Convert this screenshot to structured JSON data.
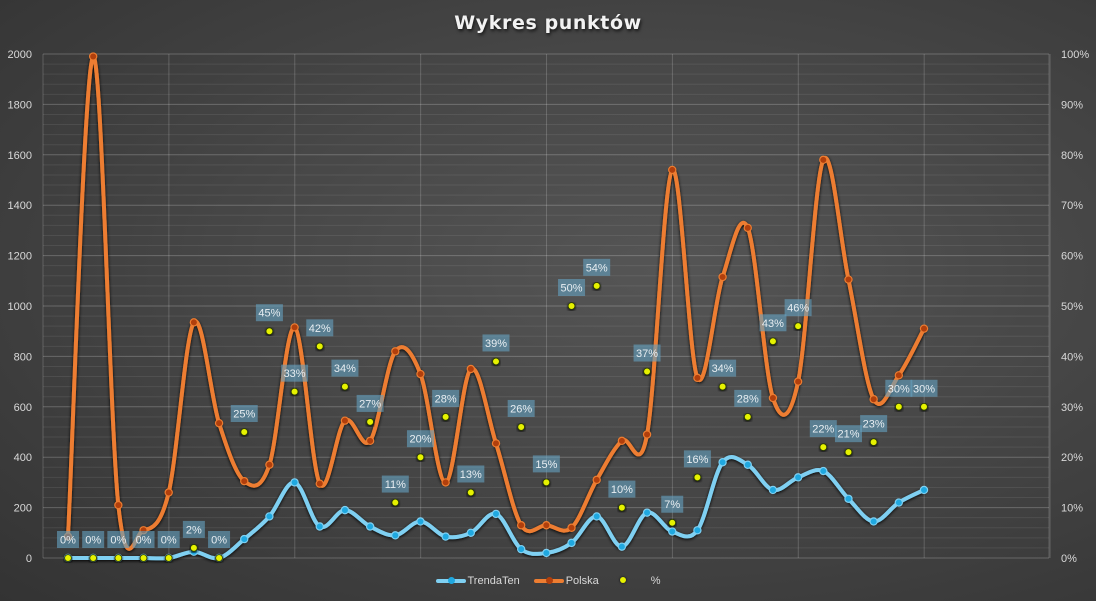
{
  "chart_data": {
    "type": "line",
    "title": "Wykres punktów",
    "xlabel": "",
    "ylabel": "",
    "ylim": [
      0,
      2000
    ],
    "y_ticks": [
      0,
      200,
      400,
      600,
      800,
      1000,
      1200,
      1400,
      1600,
      1800,
      2000
    ],
    "y2lim": [
      0,
      100
    ],
    "y2_ticks": [
      "0%",
      "10%",
      "20%",
      "30%",
      "40%",
      "50%",
      "60%",
      "70%",
      "80%",
      "90%",
      "100%"
    ],
    "grid": true,
    "legend_position": "bottom",
    "x": [
      1,
      2,
      3,
      4,
      5,
      6,
      7,
      8,
      9,
      10,
      11,
      12,
      13,
      14,
      15,
      16,
      17,
      18,
      19,
      20,
      21,
      22,
      23,
      24,
      25,
      26,
      27,
      28,
      29,
      30,
      31,
      32,
      33,
      34,
      35
    ],
    "series": [
      {
        "name": "TrendaTen",
        "type": "line",
        "axis": "left",
        "color": "#7fd0f2",
        "marker_color": "#1fa8e0",
        "values": [
          0,
          0,
          0,
          0,
          0,
          25,
          0,
          75,
          165,
          300,
          125,
          190,
          125,
          90,
          145,
          85,
          100,
          175,
          35,
          20,
          60,
          165,
          45,
          180,
          105,
          110,
          380,
          370,
          270,
          320,
          345,
          235,
          145,
          220,
          270
        ]
      },
      {
        "name": "Polska",
        "type": "line",
        "axis": "left",
        "color": "#ed7d31",
        "marker_color": "#b13f0c",
        "values": [
          85,
          1990,
          210,
          110,
          260,
          935,
          535,
          305,
          370,
          915,
          295,
          545,
          465,
          820,
          730,
          300,
          750,
          455,
          130,
          130,
          120,
          310,
          465,
          490,
          1540,
          715,
          1115,
          1310,
          635,
          700,
          1580,
          1105,
          630,
          725,
          910
        ]
      },
      {
        "name": "%",
        "type": "scatter",
        "axis": "right",
        "color": "#e6f200",
        "values": [
          0,
          0,
          0,
          0,
          0,
          2,
          0,
          25,
          45,
          33,
          42,
          34,
          27,
          11,
          20,
          28,
          13,
          39,
          26,
          15,
          50,
          54,
          10,
          37,
          7,
          16,
          34,
          28,
          43,
          46,
          22,
          21,
          23,
          30,
          30
        ],
        "labels": [
          "0%",
          "0%",
          "0%",
          "0%",
          "0%",
          "2%",
          "0%",
          "25%",
          "45%",
          "33%",
          "42%",
          "34%",
          "27%",
          "11%",
          "20%",
          "28%",
          "13%",
          "39%",
          "26%",
          "15%",
          "50%",
          "54%",
          "10%",
          "37%",
          "7%",
          "16%",
          "34%",
          "28%",
          "43%",
          "46%",
          "22%",
          "21%",
          "23%",
          "30%",
          "30%"
        ]
      }
    ]
  },
  "legend": {
    "items": [
      {
        "label": "TrendaTen"
      },
      {
        "label": "Polska"
      },
      {
        "label": "%"
      }
    ]
  }
}
